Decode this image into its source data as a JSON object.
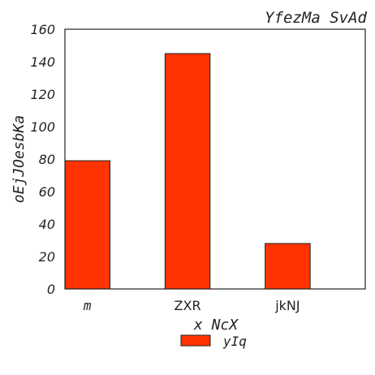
{
  "chart_data": {
    "type": "bar",
    "title": "YfezMa SvAd",
    "xlabel": "x NcX",
    "ylabel": "oEjJOesbKa",
    "categories": [
      "m",
      "ZXR",
      "jkNJ"
    ],
    "series": [
      {
        "name": "yIq",
        "values": [
          79,
          145,
          28
        ],
        "color": "#ff3300"
      }
    ],
    "ylim": [
      0,
      160
    ],
    "yticks": [
      "0",
      "20",
      "40",
      "60",
      "80",
      "100",
      "120",
      "140",
      "160"
    ],
    "grid": false,
    "legend_position": "bottom-center"
  }
}
